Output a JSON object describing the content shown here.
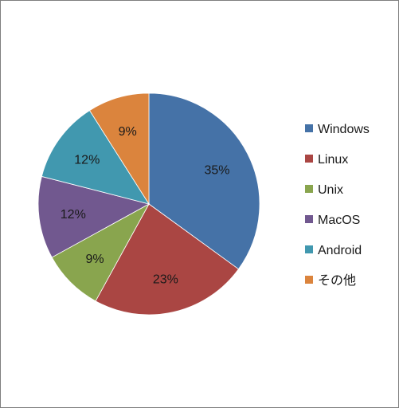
{
  "chart_data": {
    "type": "pie",
    "categories": [
      "Windows",
      "Linux",
      "Unix",
      "MacOS",
      "Android",
      "その他"
    ],
    "values": [
      35,
      23,
      9,
      12,
      12,
      9
    ],
    "data_labels": [
      "35%",
      "23%",
      "9%",
      "12%",
      "12%",
      "9%"
    ],
    "colors": [
      "#4572a7",
      "#aa4643",
      "#89a54e",
      "#71588f",
      "#4198af",
      "#db843d"
    ],
    "legend_position": "right",
    "title": ""
  }
}
